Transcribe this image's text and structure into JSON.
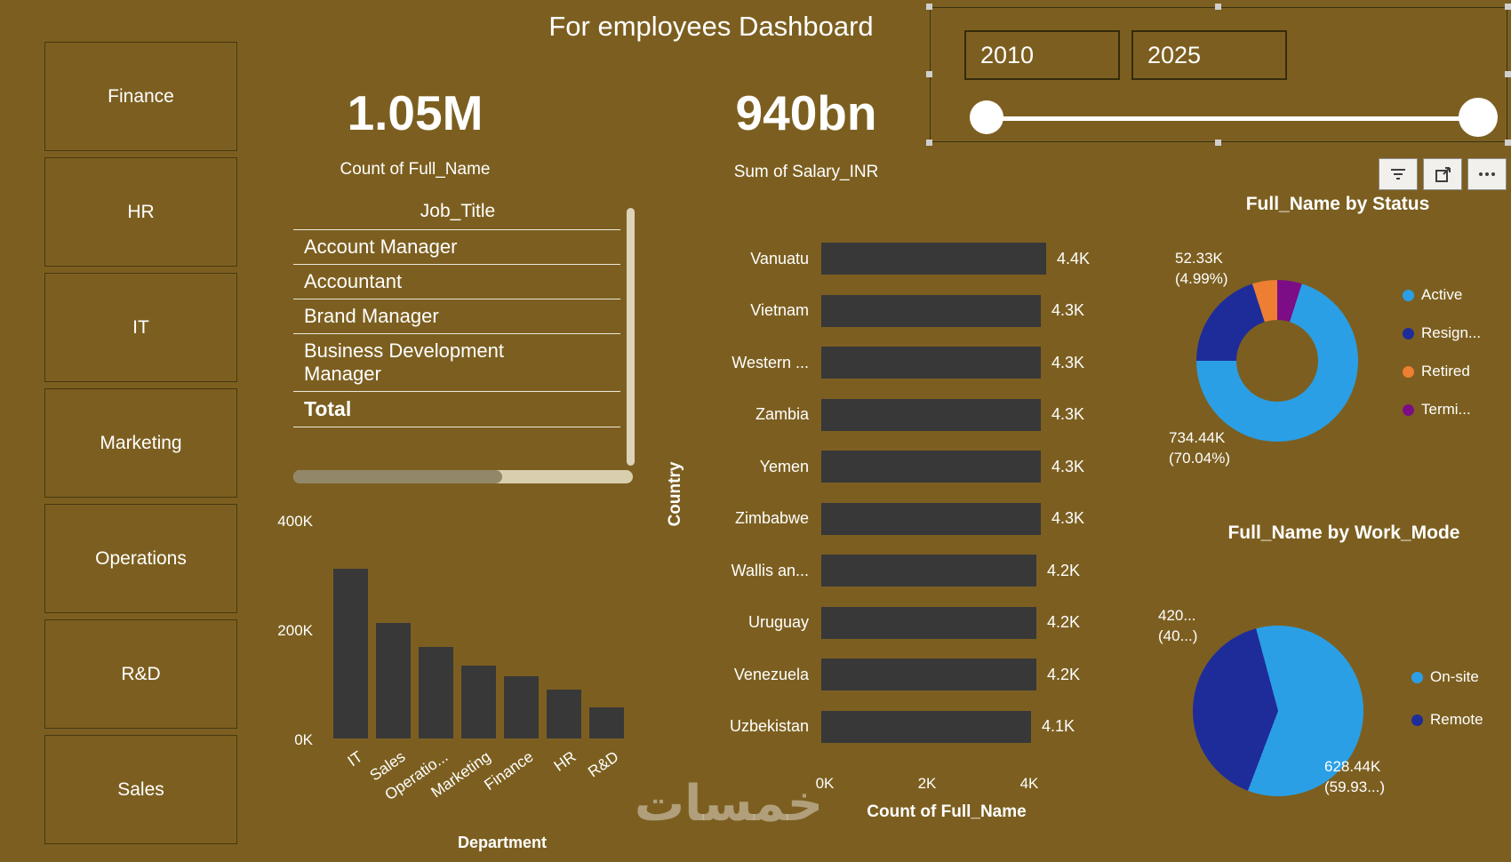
{
  "title": "For employees Dashboard",
  "watermark": "خمسات",
  "colors": {
    "background": "#7c5f20",
    "bar": "#383838",
    "active_blue": "#2a9fe6",
    "resign_blue": "#1e2c9a",
    "retired_orange": "#ee7e32",
    "termi_purple": "#7c0d86"
  },
  "sidebar": {
    "items": [
      {
        "label": "Finance"
      },
      {
        "label": "HR"
      },
      {
        "label": "IT"
      },
      {
        "label": "Marketing"
      },
      {
        "label": "Operations"
      },
      {
        "label": "R&D"
      },
      {
        "label": "Sales"
      }
    ]
  },
  "kpis": [
    {
      "value": "1.05M",
      "label": "Count of Full_Name"
    },
    {
      "value": "940bn",
      "label": "Sum of  Salary_INR"
    }
  ],
  "year_slicer": {
    "start": "2010",
    "end": "2025"
  },
  "job_title_slicer": {
    "header": "Job_Title",
    "items": [
      "Account Manager",
      "Accountant",
      "Brand Manager",
      "Business Development Manager"
    ],
    "total": "Total"
  },
  "chart_data": [
    {
      "id": "department_bar",
      "type": "bar",
      "xlabel": "Department",
      "categories": [
        "IT",
        "Sales",
        "Operatio...",
        "Marketing",
        "Finance",
        "HR",
        "R&D"
      ],
      "values": [
        310000,
        212000,
        167000,
        134000,
        114000,
        90000,
        57000
      ],
      "yticks": [
        "400K",
        "200K",
        "0K"
      ],
      "ylim": [
        0,
        400000
      ],
      "bar_color": "#383838",
      "grid": false
    },
    {
      "id": "country_bar",
      "type": "bar",
      "orientation": "horizontal",
      "ylabel": "Country",
      "xlabel": "Count of Full_Name",
      "categories": [
        "Vanuatu",
        "Vietnam",
        "Western ...",
        "Zambia",
        "Yemen",
        "Zimbabwe",
        "Wallis an...",
        "Uruguay",
        "Venezuela",
        "Uzbekistan"
      ],
      "values": [
        4400,
        4300,
        4300,
        4300,
        4300,
        4300,
        4200,
        4200,
        4200,
        4100
      ],
      "value_labels": [
        "4.4K",
        "4.3K",
        "4.3K",
        "4.3K",
        "4.3K",
        "4.3K",
        "4.2K",
        "4.2K",
        "4.2K",
        "4.1K"
      ],
      "xticks": [
        "0K",
        "2K",
        "4K"
      ],
      "xlim": [
        0,
        4600
      ],
      "bar_color": "#383838",
      "grid": false
    },
    {
      "id": "status_donut",
      "type": "pie",
      "subtype": "donut",
      "title": "Full_Name by Status",
      "legend_position": "right",
      "slices": [
        {
          "label": "Termi...",
          "pct": 4.93,
          "color": "#7c0d86"
        },
        {
          "label": "Active",
          "pct": 70.04,
          "color": "#2a9fe6",
          "callout": {
            "line1": "734.44K",
            "line2": "(70.04%)"
          }
        },
        {
          "label": "Resign...",
          "pct": 20.04,
          "color": "#1e2c9a"
        },
        {
          "label": "Retired",
          "pct": 4.99,
          "color": "#ee7e32",
          "callout": {
            "line1": "52.33K",
            "line2": "(4.99%)"
          }
        }
      ],
      "legend": [
        {
          "label": "Active",
          "color": "#2a9fe6"
        },
        {
          "label": "Resign...",
          "color": "#1e2c9a"
        },
        {
          "label": "Retired",
          "color": "#ee7e32"
        },
        {
          "label": "Termi...",
          "color": "#7c0d86"
        }
      ]
    },
    {
      "id": "workmode_pie",
      "type": "pie",
      "title": "Full_Name by Work_Mode",
      "legend_position": "right",
      "start_angle": -15,
      "slices": [
        {
          "label": "On-site",
          "pct": 59.93,
          "color": "#2a9fe6",
          "callout": {
            "line1": "628.44K",
            "line2": "(59.93...)"
          }
        },
        {
          "label": "Remote",
          "pct": 40.07,
          "color": "#1e2c9a",
          "callout": {
            "line1": "420...",
            "line2": "(40...)"
          }
        }
      ],
      "legend": [
        {
          "label": "On-site",
          "color": "#2a9fe6"
        },
        {
          "label": "Remote",
          "color": "#1e2c9a"
        }
      ]
    }
  ]
}
